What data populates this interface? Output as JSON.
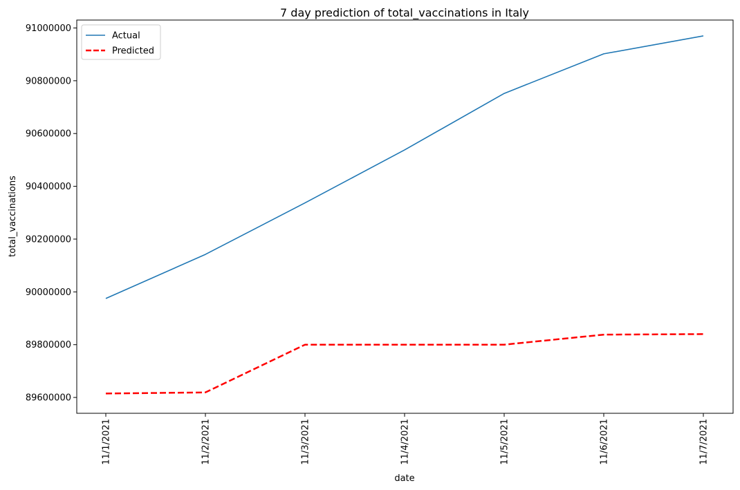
{
  "chart_data": {
    "type": "line",
    "title": "7 day prediction of total_vaccinations in Italy",
    "xlabel": "date",
    "ylabel": "total_vaccinations",
    "categories": [
      "11/1/2021",
      "11/2/2021",
      "11/3/2021",
      "11/4/2021",
      "11/5/2021",
      "11/6/2021",
      "11/7/2021"
    ],
    "y_ticks": [
      89600000,
      89800000,
      90000000,
      90200000,
      90400000,
      90600000,
      90800000,
      91000000
    ],
    "y_tick_labels": [
      "89600000",
      "89800000",
      "90000000",
      "90200000",
      "90400000",
      "90600000",
      "90800000",
      "91000000"
    ],
    "ylim": [
      89540000,
      91030000
    ],
    "grid": false,
    "legend_position": "top-left",
    "series": [
      {
        "name": "Actual",
        "color": "#1f77b4",
        "style": "solid",
        "values": [
          89975000,
          90142000,
          90337000,
          90538000,
          90752000,
          90902000,
          90970000
        ]
      },
      {
        "name": "Predicted",
        "color": "#ff0000",
        "style": "dashed",
        "values": [
          89615000,
          89619000,
          89800000,
          89800000,
          89800000,
          89838000,
          89840000
        ]
      }
    ]
  }
}
